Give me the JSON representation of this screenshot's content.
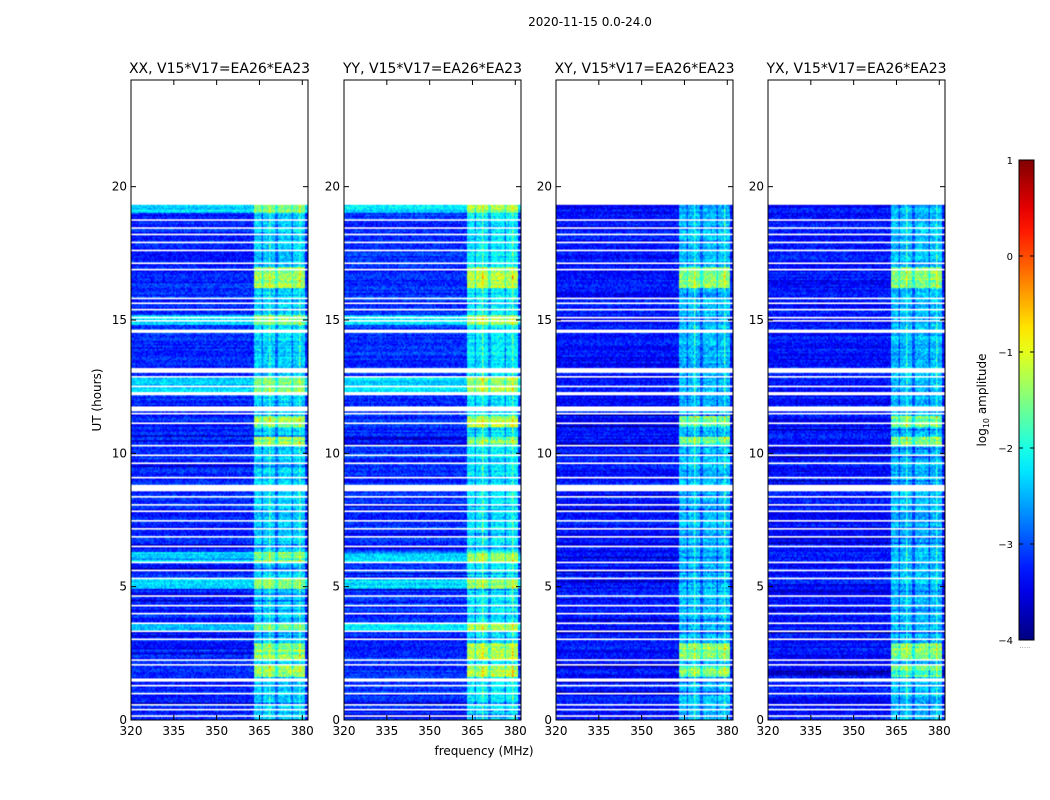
{
  "figure": {
    "suptitle": "2020-11-15 0.0-24.0",
    "xlabel": "frequency (MHz)",
    "ylabel": "UT (hours)",
    "colorbar_label_prefix": "log",
    "colorbar_label_sub": "10",
    "colorbar_label_suffix": " amplitude",
    "colorbar_extra_tick": "....."
  },
  "colors": {
    "background": "#ffffff",
    "axes": "#000000",
    "blank_gap": "#ffffff"
  },
  "chart_data": {
    "type": "heatmap",
    "colormap": "jet",
    "panels": [
      {
        "title": "XX, V15*V17=EA26*EA23",
        "overall_level": -3.2,
        "rfi_boost": 0.0
      },
      {
        "title": "YY, V15*V17=EA26*EA23",
        "overall_level": -3.15,
        "rfi_boost": 0.1
      },
      {
        "title": "XY, V15*V17=EA26*EA23",
        "overall_level": -3.3,
        "rfi_boost": 0.0
      },
      {
        "title": "YX, V15*V17=EA26*EA23",
        "overall_level": -3.3,
        "rfi_boost": 0.0
      }
    ],
    "xlim": [
      320,
      382
    ],
    "xticks": [
      320,
      335,
      350,
      365,
      380
    ],
    "xticklabels": [
      "320",
      "335",
      "350",
      "365",
      "380"
    ],
    "ylim": [
      0,
      24
    ],
    "yticks": [
      0,
      5,
      10,
      15,
      20
    ],
    "yticklabels": [
      "0",
      "5",
      "10",
      "15",
      "20"
    ],
    "data_end_hour": 19.4,
    "colorbar": {
      "vmin": -4,
      "vmax": 1,
      "ticks": [
        -4,
        -3,
        -2,
        -1,
        0,
        1
      ],
      "ticklabels": [
        "−4",
        "−3",
        "−2",
        "−1",
        "0",
        "1"
      ]
    },
    "rfi_band_mhz": [
      363,
      381
    ],
    "rfi_channels_mhz": [
      364.5,
      367.5,
      369.5,
      372.5,
      375,
      378,
      380
    ],
    "gaps_hours": [
      [
        19.35,
        19.4
      ],
      [
        18.7,
        18.78
      ],
      [
        18.45,
        18.5
      ],
      [
        18.2,
        18.25
      ],
      [
        17.9,
        17.96
      ],
      [
        17.6,
        17.65
      ],
      [
        17.1,
        17.18
      ],
      [
        16.85,
        16.9
      ],
      [
        15.8,
        15.86
      ],
      [
        15.6,
        15.65
      ],
      [
        15.35,
        15.42
      ],
      [
        15.05,
        15.1
      ],
      [
        14.95,
        14.98
      ],
      [
        14.8,
        14.85
      ],
      [
        14.55,
        14.62
      ],
      [
        13.3,
        13.35
      ],
      [
        13.0,
        13.18
      ],
      [
        12.85,
        12.9
      ],
      [
        12.5,
        12.55
      ],
      [
        12.2,
        12.28
      ],
      [
        11.6,
        11.75
      ],
      [
        11.45,
        11.5
      ],
      [
        11.1,
        11.13
      ],
      [
        10.25,
        10.3
      ],
      [
        9.9,
        9.95
      ],
      [
        9.6,
        9.65
      ],
      [
        9.35,
        9.38
      ],
      [
        9.05,
        9.1
      ],
      [
        8.6,
        8.8
      ],
      [
        8.35,
        8.4
      ],
      [
        8.05,
        8.1
      ],
      [
        7.8,
        7.86
      ],
      [
        7.45,
        7.5
      ],
      [
        7.15,
        7.2
      ],
      [
        6.85,
        6.9
      ],
      [
        6.5,
        6.55
      ],
      [
        5.9,
        5.95
      ],
      [
        5.6,
        5.65
      ],
      [
        5.3,
        5.35
      ],
      [
        4.9,
        4.95
      ],
      [
        4.6,
        4.65
      ],
      [
        4.25,
        4.3
      ],
      [
        3.95,
        4.0
      ],
      [
        3.6,
        3.65
      ],
      [
        3.3,
        3.35
      ],
      [
        3.0,
        3.05
      ],
      [
        2.2,
        2.25
      ],
      [
        2.05,
        2.1
      ],
      [
        1.45,
        1.55
      ],
      [
        1.25,
        1.3
      ],
      [
        0.95,
        1.0
      ],
      [
        0.55,
        0.6
      ],
      [
        0.35,
        0.4
      ],
      [
        0.1,
        0.15
      ]
    ],
    "bright_broadband_hours_xx_yy": [
      [
        19.0,
        19.3
      ],
      [
        14.85,
        15.2
      ],
      [
        12.3,
        12.85
      ],
      [
        5.95,
        6.3
      ],
      [
        4.95,
        5.3
      ],
      [
        3.35,
        3.6
      ]
    ],
    "rfi_bright_hours": [
      [
        16.2,
        17.0
      ],
      [
        11.0,
        11.4
      ],
      [
        10.3,
        10.6
      ],
      [
        2.3,
        2.9
      ],
      [
        1.6,
        2.05
      ]
    ]
  }
}
